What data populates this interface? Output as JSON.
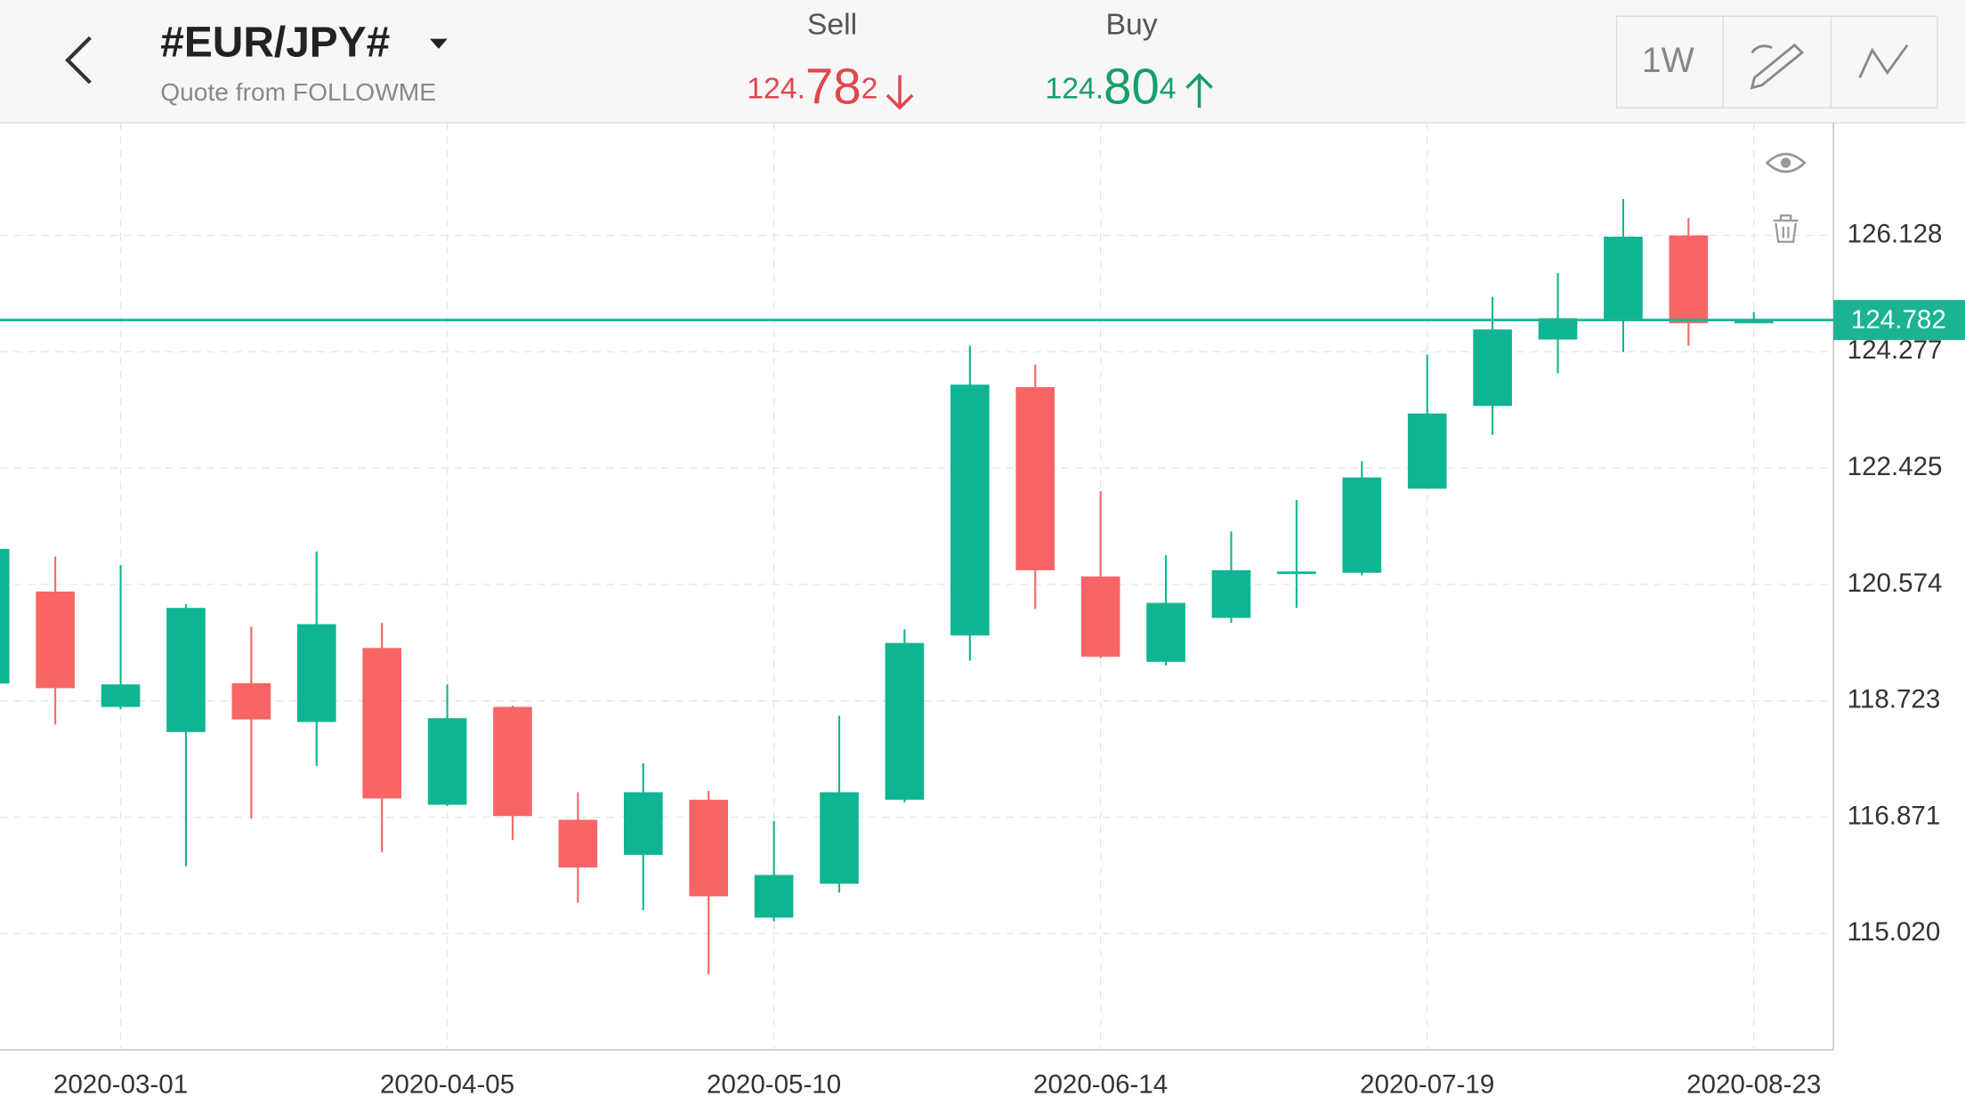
{
  "header": {
    "title": "#EUR/JPY#",
    "subtitle": "Quote from FOLLOWME",
    "sell_label": "Sell",
    "sell_price": "124.782",
    "buy_label": "Buy",
    "buy_price": "124.804"
  },
  "toolbar": {
    "period": "1W"
  },
  "chart_data": {
    "type": "candlestick",
    "categories": [
      null,
      null,
      "2020-03-01",
      null,
      null,
      null,
      null,
      "2020-04-05",
      null,
      null,
      null,
      null,
      "2020-05-10",
      null,
      null,
      null,
      null,
      "2020-06-14",
      null,
      null,
      null,
      null,
      "2020-07-19",
      null,
      null,
      null,
      null,
      "2020-08-23"
    ],
    "open": [
      118.999,
      120.462,
      118.626,
      118.227,
      119.005,
      118.387,
      119.564,
      117.07,
      118.626,
      116.831,
      116.272,
      117.15,
      115.274,
      115.813,
      117.15,
      119.763,
      123.714,
      120.701,
      119.344,
      120.043,
      120.741,
      120.761,
      122.098,
      123.415,
      124.472,
      124.771,
      126.128,
      124.731
    ],
    "high": [
      121.14,
      121.02,
      120.881,
      120.262,
      119.903,
      121.1,
      119.963,
      118.985,
      118.646,
      117.269,
      117.728,
      117.289,
      116.81,
      118.486,
      119.863,
      124.372,
      124.073,
      122.058,
      121.04,
      121.419,
      121.918,
      122.537,
      124.233,
      125.15,
      125.529,
      126.707,
      126.407,
      124.911
    ],
    "low": [
      118.999,
      118.347,
      118.586,
      116.092,
      116.85,
      117.688,
      116.312,
      117.05,
      116.511,
      115.514,
      115.394,
      114.376,
      115.214,
      115.673,
      117.11,
      119.364,
      120.182,
      119.404,
      119.285,
      119.963,
      120.202,
      120.721,
      122.098,
      122.956,
      123.933,
      124.272,
      124.372,
      124.731
    ],
    "close": [
      121.14,
      118.925,
      118.985,
      120.202,
      118.427,
      119.943,
      117.17,
      118.447,
      116.89,
      116.072,
      117.269,
      115.613,
      115.953,
      117.269,
      119.644,
      123.754,
      120.801,
      119.424,
      120.282,
      120.801,
      120.781,
      122.277,
      123.295,
      124.632,
      124.811,
      126.108,
      124.731,
      124.782
    ],
    "up_color": "#0fb592",
    "down_color": "#f76566",
    "ylim": [
      113.17,
      127.92
    ],
    "yticks": [
      {
        "value": 115.02,
        "label": "115.020"
      },
      116.871,
      118.723,
      120.574,
      122.425,
      124.277,
      126.128
    ],
    "grid": true,
    "current_price": 124.782,
    "current_price_color": "#1bb394"
  }
}
